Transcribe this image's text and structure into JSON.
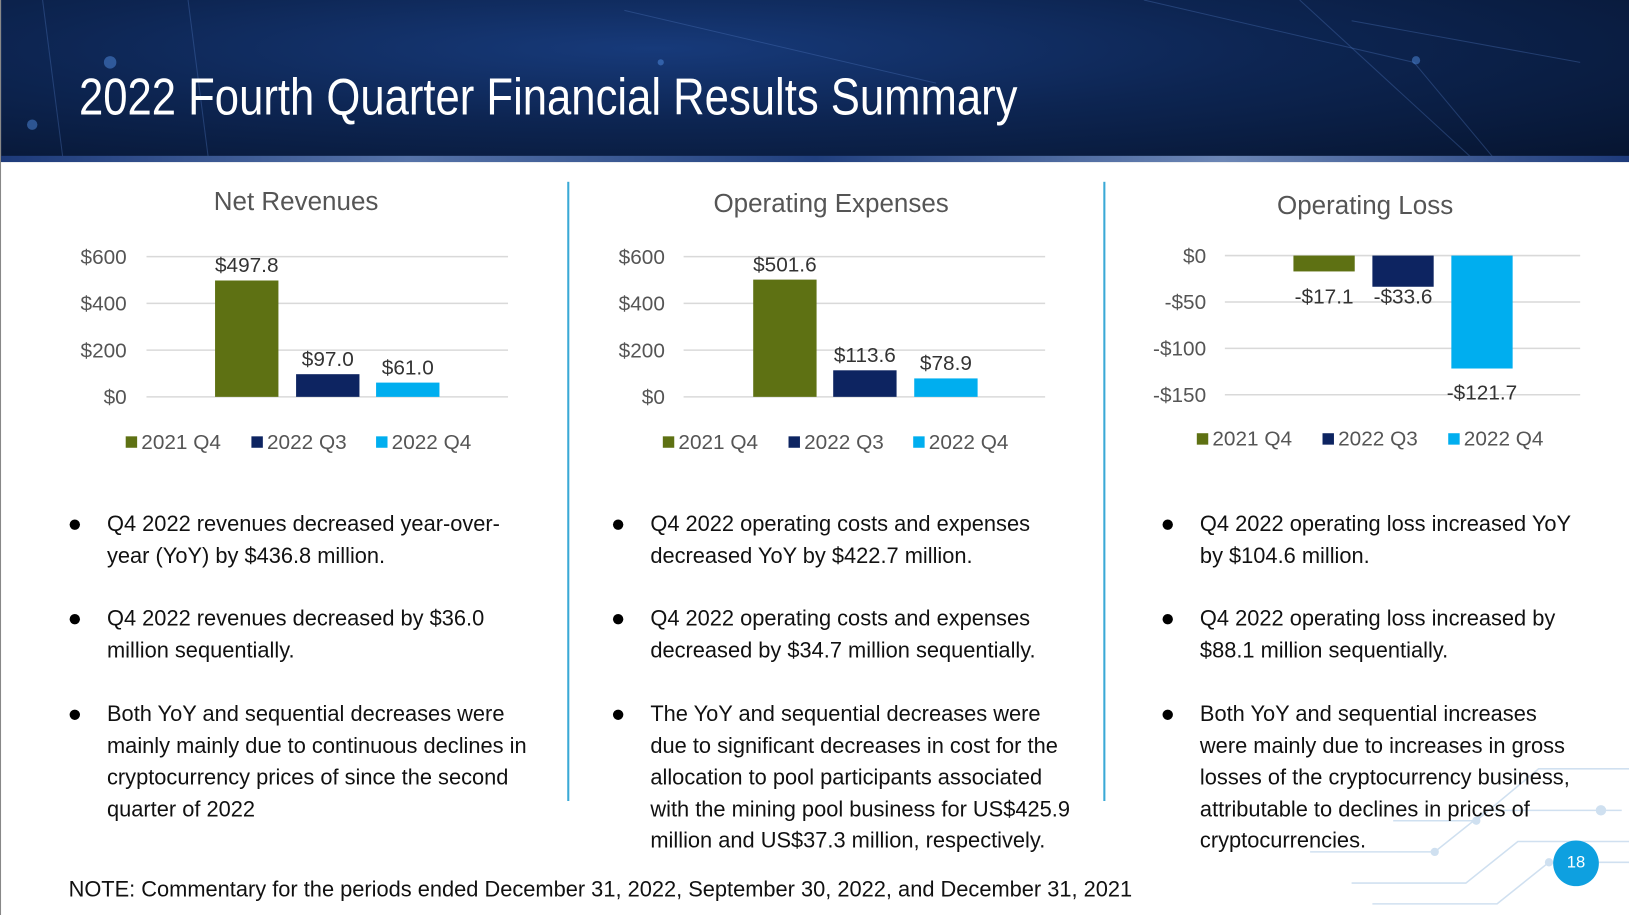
{
  "title": "2022 Fourth Quarter Financial Results Summary",
  "colors": {
    "2021 Q4": "#5e7113",
    "2022 Q3": "#0d2461",
    "2022 Q4": "#00aeef"
  },
  "chart_data": [
    {
      "type": "bar",
      "title": "Net Revenues",
      "categories": [
        "2021 Q4",
        "2022 Q3",
        "2022 Q4"
      ],
      "values": [
        497.8,
        97.0,
        61.0
      ],
      "data_labels": [
        "$497.8",
        "$97.0",
        "$61.0"
      ],
      "yticks": [
        0,
        200,
        400,
        600
      ],
      "ytick_labels": [
        "$0",
        "$200",
        "$400",
        "$600"
      ],
      "ylim": [
        0,
        600
      ],
      "legend": "bottom",
      "grid": true
    },
    {
      "type": "bar",
      "title": "Operating Expenses",
      "categories": [
        "2021 Q4",
        "2022 Q3",
        "2022 Q4"
      ],
      "values": [
        501.6,
        113.6,
        78.9
      ],
      "data_labels": [
        "$501.6",
        "$113.6",
        "$78.9"
      ],
      "yticks": [
        0,
        200,
        400,
        600
      ],
      "ytick_labels": [
        "$0",
        "$200",
        "$400",
        "$600"
      ],
      "ylim": [
        0,
        600
      ],
      "legend": "bottom",
      "grid": true
    },
    {
      "type": "bar",
      "title": "Operating Loss",
      "categories": [
        "2021 Q4",
        "2022 Q3",
        "2022 Q4"
      ],
      "values": [
        -17.1,
        -33.6,
        -121.7
      ],
      "data_labels": [
        "-$17.1",
        "-$33.6",
        "-$121.7"
      ],
      "yticks": [
        0,
        -50,
        -100,
        -150
      ],
      "ytick_labels": [
        "$0",
        "-$50",
        "-$100",
        "-$150"
      ],
      "ylim": [
        -150,
        0
      ],
      "legend": "bottom",
      "grid": true
    }
  ],
  "columns": [
    {
      "bullets": [
        [
          "Q4 2022 revenues decreased year-over-",
          "year (YoY) by $436.8 million."
        ],
        [
          "Q4 2022 revenues decreased by $36.0",
          "million sequentially."
        ],
        [
          "Both YoY and sequential decreases were",
          "mainly mainly due to continuous declines in",
          "cryptocurrency prices of since the second",
          "quarter of 2022"
        ]
      ]
    },
    {
      "bullets": [
        [
          "Q4 2022 operating costs and expenses",
          "decreased YoY by $422.7 million."
        ],
        [
          "Q4 2022 operating costs and expenses",
          "decreased by $34.7 million sequentially."
        ],
        [
          "The YoY and sequential decreases were",
          "due to significant decreases in cost for the",
          "allocation to pool participants associated",
          "with the mining pool business for US$425.9",
          "million and US$37.3 million, respectively."
        ]
      ]
    },
    {
      "bullets": [
        [
          "Q4 2022 operating loss increased YoY",
          "by $104.6 million."
        ],
        [
          "Q4 2022 operating loss increased by",
          "$88.1 million sequentially."
        ],
        [
          "Both YoY and sequential increases",
          "were  mainly due to increases in gross",
          "losses of the cryptocurrency business,",
          "attributable to declines in prices of",
          "cryptocurrencies."
        ]
      ]
    }
  ],
  "note": "NOTE: Commentary for the periods ended December 31, 2022, September 30, 2022, and December 31, 2021",
  "page_number": "18"
}
